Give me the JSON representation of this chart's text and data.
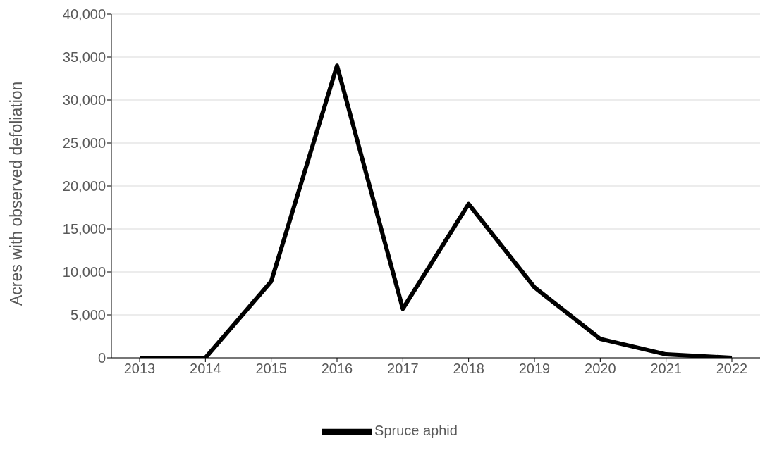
{
  "chart_data": {
    "type": "line",
    "ylabel": "Acres with observed defoliation",
    "categories": [
      "2013",
      "2014",
      "2015",
      "2016",
      "2017",
      "2018",
      "2019",
      "2020",
      "2021",
      "2022"
    ],
    "series": [
      {
        "name": "Spruce aphid",
        "color": "#000000",
        "values": [
          0,
          0,
          8900,
          34000,
          5700,
          17900,
          8200,
          2200,
          400,
          0
        ]
      }
    ],
    "ylim": [
      0,
      40000
    ],
    "yticks": [
      0,
      {
        "value": 5000,
        "label": "5,000"
      },
      {
        "value": 10000,
        "label": "10,000"
      },
      {
        "value": 15000,
        "label": "15,000"
      },
      {
        "value": 20000,
        "label": "20,000"
      },
      {
        "value": 25000,
        "label": "25,000"
      },
      {
        "value": 30000,
        "label": "30,000"
      },
      {
        "value": 35000,
        "label": "35,000"
      },
      {
        "value": 40000,
        "label": "40,000"
      }
    ],
    "grid": "y",
    "legend": "bottom",
    "marker": "none",
    "line_style": "solid"
  }
}
